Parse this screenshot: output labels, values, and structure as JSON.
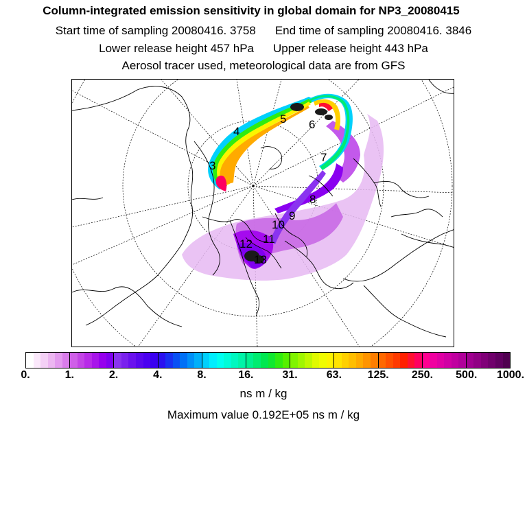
{
  "header": {
    "title": "Column-integrated emission sensitivity in global domain for NP3_20080415",
    "start_label": "Start time of sampling 20080416.  3758",
    "end_label": "End time of sampling 20080416.  3846",
    "lower_label": "Lower release height  457 hPa",
    "upper_label": "Upper release height  443 hPa",
    "tracer_label": "Aerosol tracer used, meteorological data are from GFS"
  },
  "map": {
    "projection": "polar stereographic (north pole)",
    "trajectory_labels": [
      "3",
      "4",
      "5",
      "6",
      "7",
      "8",
      "9",
      "10",
      "11",
      "12",
      "13"
    ]
  },
  "colorbar": {
    "tick_labels": [
      "0.",
      "1.",
      "2.",
      "4.",
      "8.",
      "16.",
      "31.",
      "63.",
      "125.",
      "250.",
      "500.",
      "1000."
    ],
    "unit": "ns m / kg",
    "colors": [
      "#ffffff",
      "#fbe8fb",
      "#f4d0f6",
      "#ecb6f1",
      "#e39aee",
      "#d97cea",
      "#cf5fe8",
      "#c344e6",
      "#b82be8",
      "#a815ea",
      "#9600ee",
      "#8000f0",
      "#8a33f0",
      "#7a22ee",
      "#6a12ee",
      "#5808ee",
      "#4a00f0",
      "#3a00f0",
      "#2a10f0",
      "#1830f2",
      "#0850f4",
      "#0070f6",
      "#0090f8",
      "#00b0fa",
      "#00d0fc",
      "#00eefe",
      "#00fff0",
      "#00fcd8",
      "#00f8c0",
      "#00f4a8",
      "#00f090",
      "#00ec70",
      "#00e850",
      "#10e830",
      "#30ec10",
      "#55f000",
      "#80f400",
      "#a0f600",
      "#c0f800",
      "#e0fa00",
      "#f0fc00",
      "#fcf400",
      "#ffe400",
      "#ffd000",
      "#ffbe00",
      "#ffaa00",
      "#ff9400",
      "#ff7e00",
      "#ff6800",
      "#ff5000",
      "#ff3a00",
      "#ff2000",
      "#ff1030",
      "#ff0060",
      "#ff0090",
      "#f000a0",
      "#e000a4",
      "#d000a4",
      "#c000a0",
      "#b0009a",
      "#a00090",
      "#900084",
      "#800078",
      "#70006c",
      "#600060",
      "#500050"
    ]
  },
  "footer": {
    "max_label": "Maximum value  0.192E+05 ns m / kg"
  }
}
